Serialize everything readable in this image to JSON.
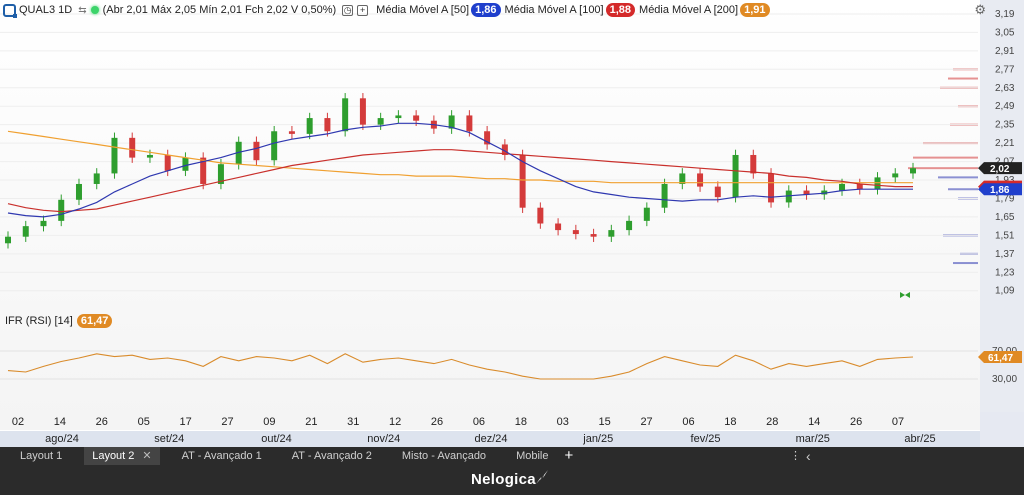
{
  "header": {
    "symbol": "QUAL3 1D",
    "ohlc_text": "(Abr 2,01 Máx 2,05 Mín 2,01 Fch 2,02 V 0,50%)",
    "ma50_label": "Média Móvel A [50]",
    "ma50_value": "1,86",
    "ma100_label": "Média Móvel A [100]",
    "ma100_value": "1,88",
    "ma200_label": "Média Móvel A [200]",
    "ma200_value": "1,91"
  },
  "rsi": {
    "label": "IFR (RSI) [14]",
    "value": "61,47"
  },
  "colors": {
    "up": "#2e9e2e",
    "down": "#d43b3b",
    "ma50": "#2f38b0",
    "ma100": "#c9302c",
    "ma200": "#f0a030",
    "rsi": "#d98b2b",
    "badge_blue": "#1f3fcc",
    "badge_red": "#d42a2a",
    "badge_orange": "#e08a24",
    "last_price": "#222222"
  },
  "y_axis": {
    "ticks": [
      "3,19",
      "3,05",
      "2,91",
      "2,77",
      "2,63",
      "2,49",
      "2,35",
      "2,21",
      "2,07",
      "1,93",
      "1,79",
      "1,65",
      "1,51",
      "1,37",
      "1,23",
      "1,09"
    ],
    "rsi_ticks": [
      "70,00",
      "30,00"
    ],
    "last_price": "2,02",
    "tag_ma100": "1,88",
    "tag_ma50": "1,86"
  },
  "x_axis": {
    "dates": [
      "02",
      "14",
      "26",
      "05",
      "17",
      "27",
      "09",
      "21",
      "31",
      "12",
      "26",
      "06",
      "18",
      "03",
      "15",
      "27",
      "06",
      "18",
      "28",
      "14",
      "26",
      "07"
    ],
    "months": [
      "ago/24",
      "set/24",
      "out/24",
      "nov/24",
      "dez/24",
      "jan/25",
      "fev/25",
      "mar/25",
      "abr/25"
    ]
  },
  "tabs": [
    {
      "label": "Layout 1"
    },
    {
      "label": "Layout 2",
      "active": true,
      "close": "✕"
    },
    {
      "label": "AT - Avançado 1"
    },
    {
      "label": "AT - Avançado 2"
    },
    {
      "label": "Misto - Avançado"
    },
    {
      "label": "Mobile"
    }
  ],
  "tab_extra": {
    "add": "+",
    "more": "⋮",
    "collapse": "‹"
  },
  "brand": "Nelogica",
  "chart_data": {
    "type": "candlestick",
    "title": "QUAL3 1D",
    "ylim": [
      1.05,
      3.22
    ],
    "x": [
      "2024-08-02",
      "2024-08-07",
      "2024-08-12",
      "2024-08-16",
      "2024-08-21",
      "2024-08-26",
      "2024-08-30",
      "2024-09-05",
      "2024-09-10",
      "2024-09-14",
      "2024-09-19",
      "2024-09-24",
      "2024-09-27",
      "2024-10-02",
      "2024-10-09",
      "2024-10-14",
      "2024-10-18",
      "2024-10-23",
      "2024-10-28",
      "2024-10-31",
      "2024-11-05",
      "2024-11-08",
      "2024-11-12",
      "2024-11-18",
      "2024-11-22",
      "2024-11-26",
      "2024-12-02",
      "2024-12-06",
      "2024-12-11",
      "2024-12-16",
      "2024-12-18",
      "2024-12-23",
      "2024-12-27",
      "2025-01-03",
      "2025-01-09",
      "2025-01-15",
      "2025-01-21",
      "2025-01-27",
      "2025-01-31",
      "2025-02-06",
      "2025-02-12",
      "2025-02-18",
      "2025-02-24",
      "2025-02-28",
      "2025-03-06",
      "2025-03-12",
      "2025-03-18",
      "2025-03-24",
      "2025-03-28",
      "2025-04-02",
      "2025-04-07",
      "2025-04-10"
    ],
    "close": [
      1.5,
      1.58,
      1.62,
      1.78,
      1.9,
      1.98,
      2.25,
      2.1,
      2.12,
      2.0,
      2.1,
      1.9,
      2.05,
      2.22,
      2.08,
      2.3,
      2.28,
      2.4,
      2.3,
      2.55,
      2.35,
      2.4,
      2.42,
      2.38,
      2.32,
      2.42,
      2.3,
      2.2,
      2.12,
      1.72,
      1.6,
      1.55,
      1.52,
      1.5,
      1.55,
      1.62,
      1.72,
      1.9,
      1.98,
      1.88,
      1.8,
      2.12,
      1.98,
      1.76,
      1.85,
      1.82,
      1.85,
      1.9,
      1.86,
      1.95,
      1.98,
      2.02
    ],
    "ma50": [
      1.68,
      1.66,
      1.65,
      1.67,
      1.71,
      1.76,
      1.84,
      1.9,
      1.96,
      2.0,
      2.04,
      2.07,
      2.1,
      2.14,
      2.17,
      2.21,
      2.24,
      2.26,
      2.28,
      2.31,
      2.33,
      2.34,
      2.36,
      2.36,
      2.35,
      2.33,
      2.29,
      2.22,
      2.15,
      2.07,
      2.0,
      1.94,
      1.88,
      1.84,
      1.82,
      1.8,
      1.79,
      1.78,
      1.77,
      1.78,
      1.78,
      1.8,
      1.81,
      1.8,
      1.81,
      1.82,
      1.83,
      1.85,
      1.86,
      1.86,
      1.86,
      1.86
    ],
    "ma100": [
      1.75,
      1.72,
      1.7,
      1.69,
      1.7,
      1.71,
      1.74,
      1.77,
      1.8,
      1.83,
      1.86,
      1.89,
      1.92,
      1.95,
      1.98,
      2.01,
      2.04,
      2.06,
      2.08,
      2.1,
      2.12,
      2.13,
      2.14,
      2.15,
      2.16,
      2.16,
      2.15,
      2.14,
      2.13,
      2.12,
      2.11,
      2.1,
      2.09,
      2.08,
      2.07,
      2.06,
      2.05,
      2.04,
      2.03,
      2.02,
      2.01,
      2.0,
      1.99,
      1.98,
      1.96,
      1.95,
      1.93,
      1.92,
      1.9,
      1.89,
      1.88,
      1.88
    ],
    "ma200": [
      2.3,
      2.28,
      2.26,
      2.24,
      2.22,
      2.2,
      2.18,
      2.16,
      2.14,
      2.12,
      2.1,
      2.08,
      2.06,
      2.05,
      2.04,
      2.03,
      2.02,
      2.01,
      2.0,
      1.99,
      1.98,
      1.97,
      1.97,
      1.96,
      1.96,
      1.96,
      1.95,
      1.94,
      1.94,
      1.93,
      1.93,
      1.92,
      1.92,
      1.92,
      1.91,
      1.91,
      1.91,
      1.91,
      1.91,
      1.91,
      1.91,
      1.91,
      1.91,
      1.91,
      1.91,
      1.91,
      1.91,
      1.91,
      1.91,
      1.91,
      1.91,
      1.91
    ],
    "rsi_ylim": [
      0,
      100
    ],
    "rsi": [
      42,
      40,
      48,
      55,
      60,
      66,
      62,
      64,
      58,
      60,
      56,
      48,
      62,
      56,
      62,
      60,
      56,
      64,
      52,
      66,
      54,
      58,
      60,
      56,
      52,
      58,
      50,
      44,
      40,
      34,
      30,
      30,
      30,
      30,
      34,
      40,
      52,
      62,
      56,
      50,
      48,
      64,
      56,
      44,
      52,
      48,
      52,
      56,
      48,
      58,
      60,
      61.47
    ]
  }
}
